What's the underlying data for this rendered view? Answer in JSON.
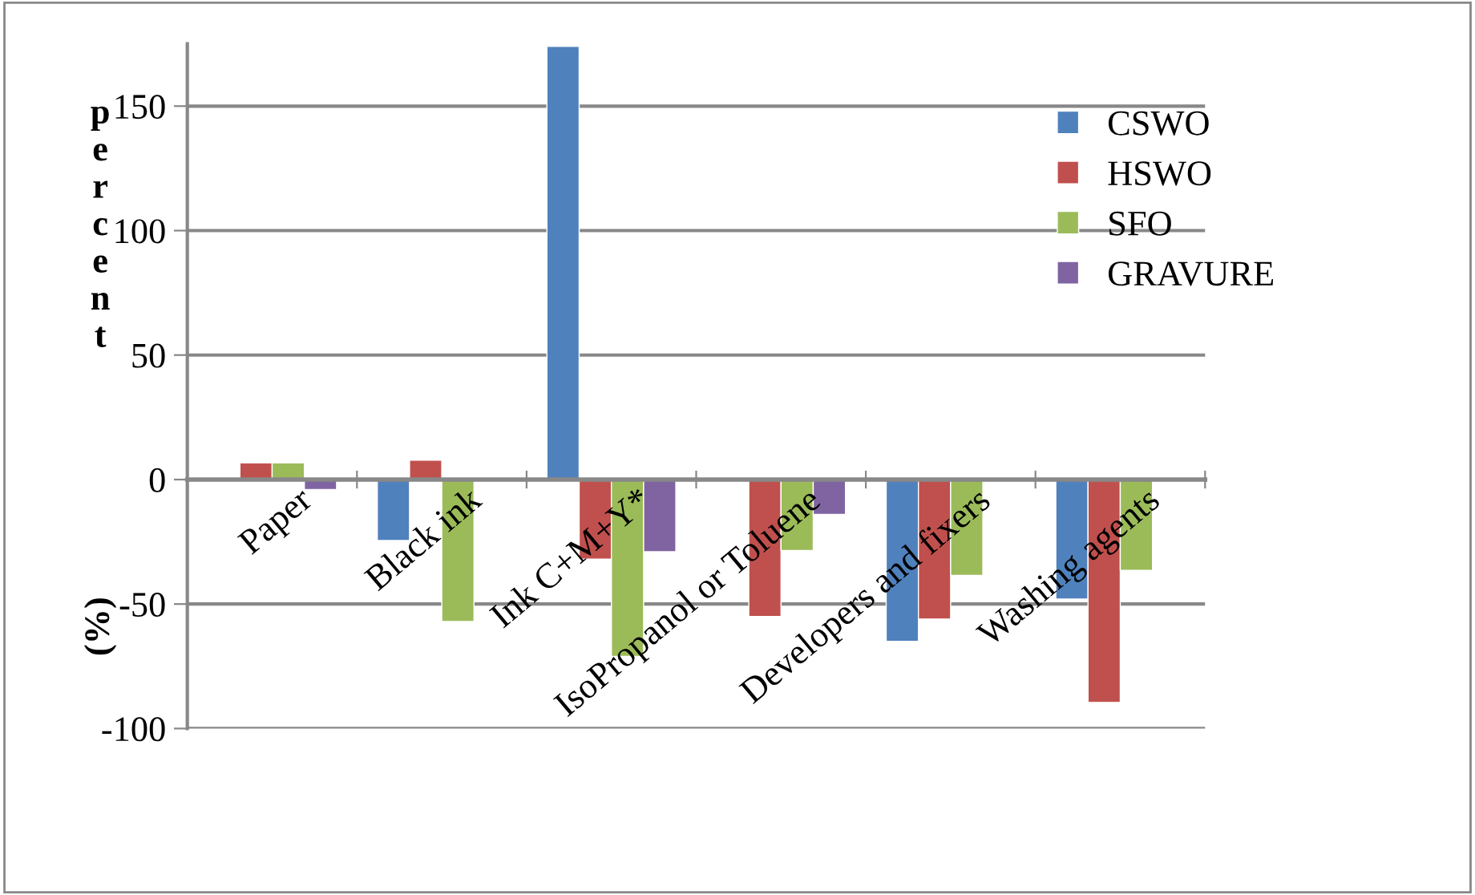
{
  "chart_data": {
    "type": "bar",
    "ylabel": "percent (%)",
    "categories": [
      "Paper",
      "Black ink",
      "Ink C+M+Y*",
      "IsoPropanol or Toluene",
      "Developers and fixers",
      "Washing agents"
    ],
    "series": [
      {
        "name": "CSWO",
        "color": "#4f81bd",
        "values": [
          null,
          -24.5,
          174,
          null,
          -65,
          -48
        ]
      },
      {
        "name": "HSWO",
        "color": "#c0504d",
        "values": [
          6.7,
          7.8,
          -32,
          -55,
          -56,
          -89.5
        ]
      },
      {
        "name": "SFO",
        "color": "#9bbb59",
        "values": [
          6.7,
          -57,
          -71,
          -28.5,
          -38.5,
          -36.5
        ]
      },
      {
        "name": "GRAVURE",
        "color": "#8064a2",
        "values": [
          -4,
          null,
          -29,
          -14,
          null,
          null
        ]
      }
    ],
    "ylim": [
      -100,
      175
    ],
    "yticks": [
      -100,
      -50,
      0,
      50,
      100,
      150
    ],
    "grid": "y",
    "legend": "top right"
  }
}
